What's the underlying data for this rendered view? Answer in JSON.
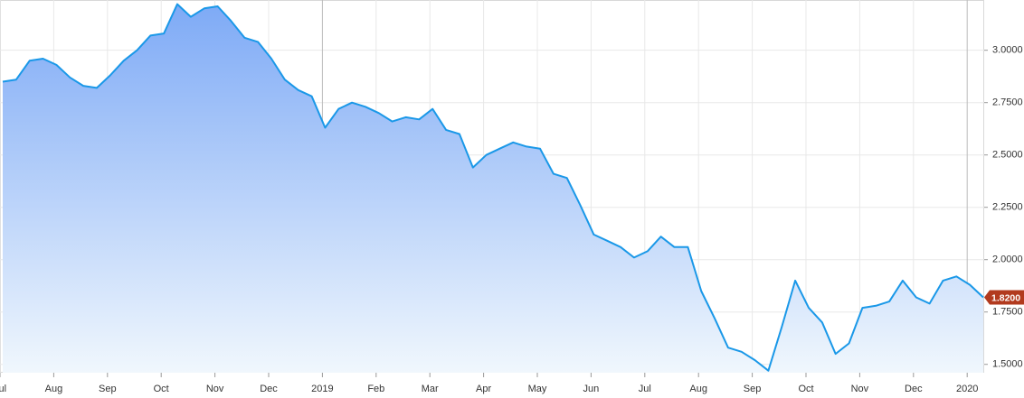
{
  "chart_data": {
    "type": "area",
    "color": "#1a98e8",
    "fill_top": "#7eaaf6",
    "fill_bottom": "#f0f7fd",
    "grid": true,
    "categories": [
      "Jul",
      null,
      null,
      null,
      "Aug",
      null,
      null,
      null,
      "Sep",
      null,
      null,
      null,
      "Oct",
      null,
      null,
      null,
      "Nov",
      null,
      null,
      null,
      "Dec",
      null,
      null,
      null,
      "2019",
      null,
      null,
      null,
      "Feb",
      null,
      null,
      null,
      "Mar",
      null,
      null,
      null,
      "Apr",
      null,
      null,
      null,
      "May",
      null,
      null,
      null,
      "Jun",
      null,
      null,
      null,
      "Jul",
      null,
      null,
      null,
      "Aug",
      null,
      null,
      null,
      "Sep",
      null,
      null,
      null,
      "Oct",
      null,
      null,
      null,
      "Nov",
      null,
      null,
      null,
      "Dec",
      null,
      null,
      null,
      "2020",
      null
    ],
    "values": [
      2.85,
      2.86,
      2.95,
      2.96,
      2.93,
      2.87,
      2.83,
      2.82,
      2.88,
      2.95,
      3.0,
      3.07,
      3.08,
      3.22,
      3.16,
      3.2,
      3.21,
      3.14,
      3.06,
      3.04,
      2.96,
      2.86,
      2.81,
      2.78,
      2.63,
      2.72,
      2.75,
      2.73,
      2.7,
      2.66,
      2.68,
      2.67,
      2.72,
      2.62,
      2.6,
      2.44,
      2.5,
      2.53,
      2.56,
      2.54,
      2.53,
      2.41,
      2.39,
      2.26,
      2.12,
      2.09,
      2.06,
      2.01,
      2.04,
      2.11,
      2.06,
      2.06,
      1.85,
      1.72,
      1.58,
      1.56,
      1.52,
      1.47,
      1.68,
      1.9,
      1.77,
      1.7,
      1.55,
      1.6,
      1.77,
      1.78,
      1.8,
      1.9,
      1.82,
      1.79,
      1.9,
      1.92,
      1.88,
      1.82
    ],
    "value_labels": [
      null,
      null,
      null,
      null,
      null,
      null,
      null,
      null,
      null,
      null,
      null,
      null,
      null,
      null,
      null,
      null,
      null,
      null,
      null,
      null,
      null,
      null,
      null,
      null,
      null,
      null,
      null,
      null,
      null,
      null,
      null,
      null,
      null,
      null,
      null,
      null,
      null,
      null,
      null,
      null,
      null,
      null,
      null,
      null,
      null,
      null,
      null,
      null,
      null,
      null,
      null,
      null,
      null,
      null,
      null,
      null,
      null,
      null,
      null,
      null,
      null,
      null,
      null,
      null,
      null,
      null,
      null,
      null,
      null,
      null,
      null,
      null,
      null,
      "1.8200"
    ],
    "label_color": "#b23a1e",
    "ylim": [
      1.46,
      3.24
    ],
    "yticks": [
      {
        "value": 1.5,
        "label": "1.5000"
      },
      {
        "value": 1.75,
        "label": "1.7500"
      },
      {
        "value": 2.0,
        "label": "2.0000"
      },
      {
        "value": 2.25,
        "label": "2.2500"
      },
      {
        "value": 2.5,
        "label": "2.5000"
      },
      {
        "value": 2.75,
        "label": "2.7500"
      },
      {
        "value": 3.0,
        "label": "3.0000"
      }
    ]
  }
}
